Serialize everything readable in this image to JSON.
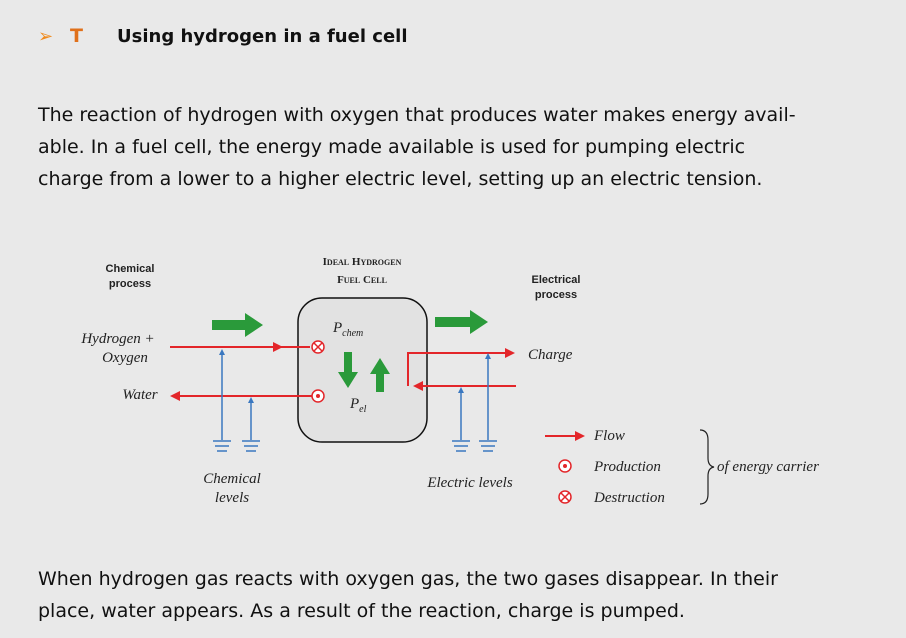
{
  "header": {
    "bullet": "➢",
    "marker": "T",
    "title": "Using hydrogen in a fuel cell"
  },
  "paragraph1": [
    "The reaction of hydrogen with oxygen that produces water makes energy avail-",
    "able. In a fuel cell, the energy made available is used for pumping electric",
    "charge from a lower to a higher electric level, setting up an electric tension."
  ],
  "diagram": {
    "chemical_process": [
      "Chemical",
      "process"
    ],
    "cell_title": [
      "Ideal Hydrogen",
      "Fuel Cell"
    ],
    "electrical_process": [
      "Electrical",
      "process"
    ],
    "hydrogen_oxygen": [
      "Hydrogen +",
      "Oxygen"
    ],
    "water": "Water",
    "charge": "Charge",
    "p_chem": {
      "symbol": "P",
      "subscript": "chem"
    },
    "p_el": {
      "symbol": "P",
      "subscript": "el"
    },
    "chemical_levels": [
      "Chemical",
      "levels"
    ],
    "electric_levels": "Electric levels",
    "legend": {
      "flow": "Flow",
      "production": "Production",
      "destruction": "Destruction",
      "group": "of energy carrier"
    }
  },
  "paragraph2": [
    "When hydrogen gas reacts with oxygen gas, the two gases disappear. In their",
    "place, water appears. As a result of the reaction, charge is pumped."
  ]
}
